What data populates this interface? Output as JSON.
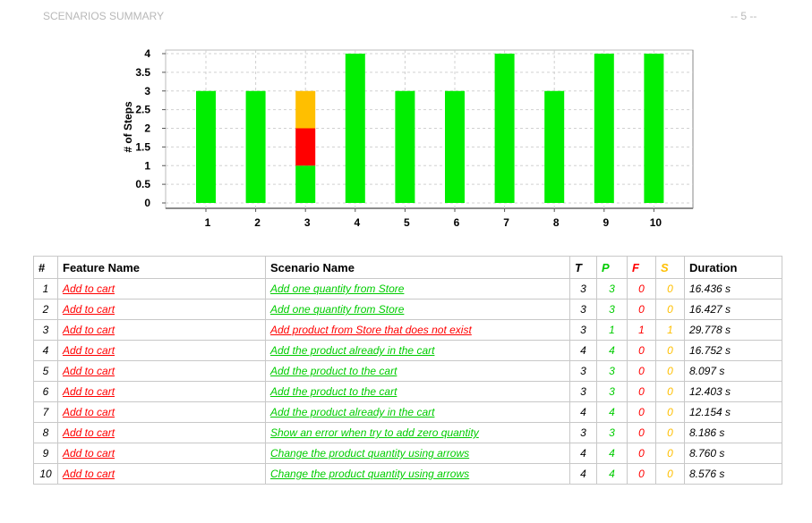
{
  "header": {
    "title": "SCENARIOS SUMMARY",
    "page": "-- 5 --"
  },
  "colors": {
    "passed": "#00ee00",
    "failed": "#ff0000",
    "skipped": "#ffbf00"
  },
  "chart_data": {
    "type": "bar",
    "stacked": true,
    "ylabel": "# of Steps",
    "xlabel": "",
    "categories": [
      "1",
      "2",
      "3",
      "4",
      "5",
      "6",
      "7",
      "8",
      "9",
      "10"
    ],
    "ylim": [
      0,
      4
    ],
    "yticks": [
      "0",
      "0.5",
      "1",
      "1.5",
      "2",
      "2.5",
      "3",
      "3.5",
      "4"
    ],
    "grid": true,
    "series": [
      {
        "color": "#00ee00",
        "values": [
          3,
          3,
          1,
          4,
          3,
          3,
          4,
          3,
          4,
          4
        ]
      },
      {
        "color": "#ff0000",
        "values": [
          0,
          0,
          1,
          0,
          0,
          0,
          0,
          0,
          0,
          0
        ]
      },
      {
        "color": "#ffbf00",
        "values": [
          0,
          0,
          1,
          0,
          0,
          0,
          0,
          0,
          0,
          0
        ]
      }
    ]
  },
  "table": {
    "headers": {
      "num": "#",
      "feature": "Feature Name",
      "scenario": "Scenario Name",
      "t": "T",
      "p": "P",
      "f": "F",
      "s": "S",
      "duration": "Duration"
    },
    "rows": [
      {
        "num": "1",
        "feature": "Add to cart",
        "scenario": "Add one quantity from Store",
        "status": "passed",
        "t": "3",
        "p": "3",
        "f": "0",
        "s": "0",
        "duration": "16.436 s"
      },
      {
        "num": "2",
        "feature": "Add to cart",
        "scenario": "Add one quantity from Store",
        "status": "passed",
        "t": "3",
        "p": "3",
        "f": "0",
        "s": "0",
        "duration": "16.427 s"
      },
      {
        "num": "3",
        "feature": "Add to cart",
        "scenario": "Add product from Store that does not exist",
        "status": "failed",
        "t": "3",
        "p": "1",
        "f": "1",
        "s": "1",
        "duration": "29.778 s"
      },
      {
        "num": "4",
        "feature": "Add to cart",
        "scenario": "Add the product already in the cart",
        "status": "passed",
        "t": "4",
        "p": "4",
        "f": "0",
        "s": "0",
        "duration": "16.752 s"
      },
      {
        "num": "5",
        "feature": "Add to cart",
        "scenario": "Add the product to the cart",
        "status": "passed",
        "t": "3",
        "p": "3",
        "f": "0",
        "s": "0",
        "duration": "8.097 s"
      },
      {
        "num": "6",
        "feature": "Add to cart",
        "scenario": "Add the product to the cart",
        "status": "passed",
        "t": "3",
        "p": "3",
        "f": "0",
        "s": "0",
        "duration": "12.403 s"
      },
      {
        "num": "7",
        "feature": "Add to cart",
        "scenario": "Add the product already in the cart",
        "status": "passed",
        "t": "4",
        "p": "4",
        "f": "0",
        "s": "0",
        "duration": "12.154 s"
      },
      {
        "num": "8",
        "feature": "Add to cart",
        "scenario": "Show an error when try to add zero quantity",
        "status": "passed",
        "t": "3",
        "p": "3",
        "f": "0",
        "s": "0",
        "duration": "8.186 s"
      },
      {
        "num": "9",
        "feature": "Add to cart",
        "scenario": "Change the product quantity using arrows",
        "status": "passed",
        "t": "4",
        "p": "4",
        "f": "0",
        "s": "0",
        "duration": "8.760 s"
      },
      {
        "num": "10",
        "feature": "Add to cart",
        "scenario": "Change the product quantity using arrows",
        "status": "passed",
        "t": "4",
        "p": "4",
        "f": "0",
        "s": "0",
        "duration": "8.576 s"
      }
    ]
  }
}
